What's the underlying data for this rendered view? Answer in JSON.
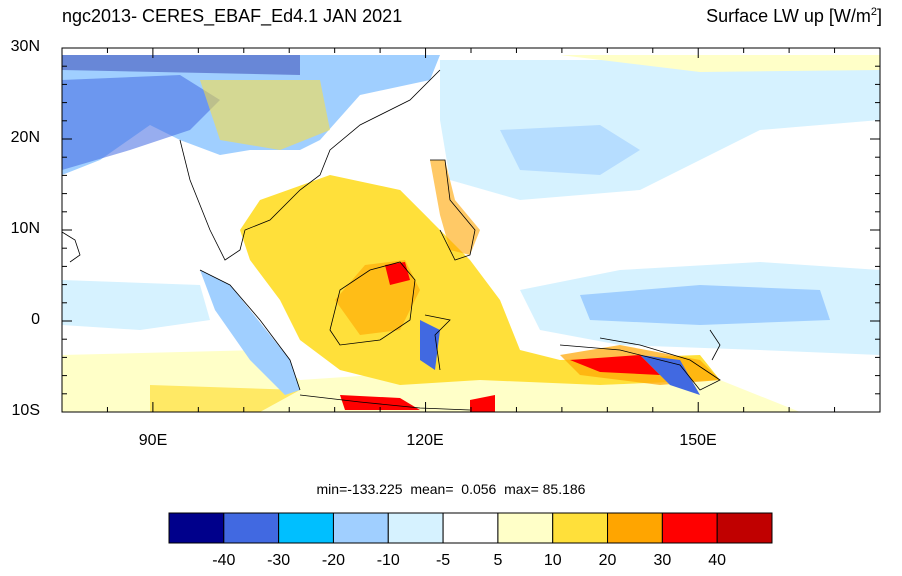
{
  "title_left": "ngc2013- CERES_EBAF_Ed4.1 JAN 2021",
  "title_right": "Surface LW up [W/m",
  "title_right_sup": "2",
  "title_right_end": "]",
  "lat_labels": [
    "30N",
    "20N",
    "10N",
    "0",
    "10S"
  ],
  "lon_labels": [
    "90E",
    "120E",
    "150E"
  ],
  "stats": {
    "min_label": "min=",
    "min": "-133.225",
    "mean_label": "mean=",
    "mean": "0.056",
    "max_label": "max=",
    "max": "85.186"
  },
  "colorbar": {
    "colors": [
      "#00008b",
      "#4169e1",
      "#00bfff",
      "#a0cfff",
      "#d6f2ff",
      "#ffffff",
      "#ffffc8",
      "#ffe03a",
      "#ffa500",
      "#ff0000",
      "#c00000"
    ],
    "labels": [
      "-40",
      "-30",
      "-20",
      "-10",
      "-5",
      "5",
      "10",
      "20",
      "30",
      "40"
    ]
  },
  "map": {
    "lon_range": [
      80,
      170
    ],
    "lat_range": [
      -10,
      30
    ]
  }
}
